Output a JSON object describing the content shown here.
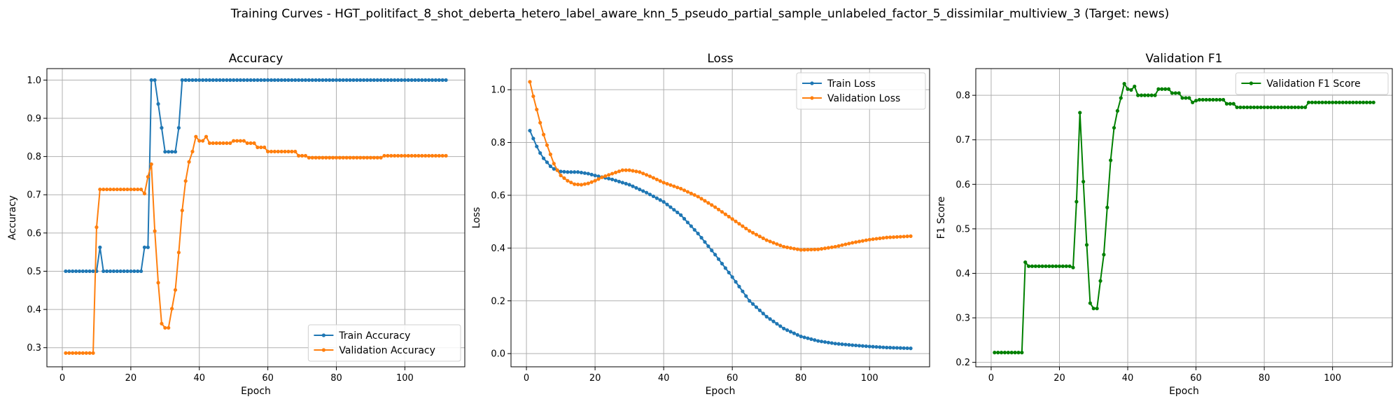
{
  "figure": {
    "suptitle": "Training Curves - HGT_politifact_8_shot_deberta_hetero_label_aware_knn_5_pseudo_partial_sample_unlabeled_factor_5_dissimilar_multiview_3 (Target: news)"
  },
  "chart_data": [
    {
      "type": "line",
      "title": "Accuracy",
      "xlabel": "Epoch",
      "ylabel": "Accuracy",
      "xlim": [
        -4.5,
        117.5
      ],
      "ylim": [
        0.25,
        1.03
      ],
      "xticks": [
        0,
        20,
        40,
        60,
        80,
        100
      ],
      "yticks": [
        0.3,
        0.4,
        0.5,
        0.6,
        0.7,
        0.8,
        0.9,
        1.0
      ],
      "grid": true,
      "legend_position": "lower right",
      "x": {
        "start": 1,
        "end": 112
      },
      "series": [
        {
          "name": "Train Accuracy",
          "color": "#1f77b4",
          "keypoints": [
            [
              1,
              0.5
            ],
            [
              10,
              0.5
            ],
            [
              11,
              0.5625
            ],
            [
              12,
              0.5
            ],
            [
              23,
              0.5
            ],
            [
              24,
              0.5625
            ],
            [
              25,
              0.5625
            ],
            [
              26,
              1.0
            ],
            [
              27,
              1.0
            ],
            [
              28,
              0.9375
            ],
            [
              29,
              0.875
            ],
            [
              30,
              0.8125
            ],
            [
              33,
              0.8125
            ],
            [
              34,
              0.875
            ],
            [
              35,
              1.0
            ],
            [
              112,
              1.0
            ]
          ]
        },
        {
          "name": "Validation Accuracy",
          "color": "#ff7f0e",
          "keypoints": [
            [
              1,
              0.286
            ],
            [
              9,
              0.286
            ],
            [
              10,
              0.615
            ],
            [
              11,
              0.714
            ],
            [
              23,
              0.714
            ],
            [
              24,
              0.703
            ],
            [
              25,
              0.747
            ],
            [
              26,
              0.78
            ],
            [
              27,
              0.605
            ],
            [
              28,
              0.47
            ],
            [
              29,
              0.363
            ],
            [
              30,
              0.352
            ],
            [
              31,
              0.352
            ],
            [
              32,
              0.402
            ],
            [
              33,
              0.451
            ],
            [
              34,
              0.549
            ],
            [
              35,
              0.659
            ],
            [
              36,
              0.736
            ],
            [
              37,
              0.786
            ],
            [
              38,
              0.813
            ],
            [
              39,
              0.852
            ],
            [
              40,
              0.841
            ],
            [
              41,
              0.841
            ],
            [
              42,
              0.852
            ],
            [
              43,
              0.835
            ],
            [
              49,
              0.835
            ],
            [
              50,
              0.841
            ],
            [
              53,
              0.841
            ],
            [
              54,
              0.835
            ],
            [
              56,
              0.835
            ],
            [
              57,
              0.824
            ],
            [
              59,
              0.824
            ],
            [
              60,
              0.813
            ],
            [
              68,
              0.813
            ],
            [
              69,
              0.802
            ],
            [
              71,
              0.802
            ],
            [
              72,
              0.797
            ],
            [
              93,
              0.797
            ],
            [
              94,
              0.802
            ],
            [
              112,
              0.802
            ]
          ]
        }
      ]
    },
    {
      "type": "line",
      "title": "Loss",
      "xlabel": "Epoch",
      "ylabel": "Loss",
      "xlim": [
        -4.5,
        117.5
      ],
      "ylim": [
        -0.05,
        1.08
      ],
      "xticks": [
        0,
        20,
        40,
        60,
        80,
        100
      ],
      "yticks": [
        0.0,
        0.2,
        0.4,
        0.6,
        0.8,
        1.0
      ],
      "grid": true,
      "legend_position": "upper right",
      "x": {
        "start": 1,
        "end": 112
      },
      "series": [
        {
          "name": "Train Loss",
          "color": "#1f77b4",
          "keypoints": [
            [
              1,
              0.845
            ],
            [
              2,
              0.815
            ],
            [
              3,
              0.785
            ],
            [
              4,
              0.76
            ],
            [
              5,
              0.74
            ],
            [
              6,
              0.725
            ],
            [
              7,
              0.71
            ],
            [
              8,
              0.7
            ],
            [
              9,
              0.695
            ],
            [
              10,
              0.69
            ],
            [
              12,
              0.688
            ],
            [
              15,
              0.688
            ],
            [
              18,
              0.682
            ],
            [
              20,
              0.675
            ],
            [
              25,
              0.66
            ],
            [
              30,
              0.64
            ],
            [
              35,
              0.61
            ],
            [
              40,
              0.575
            ],
            [
              45,
              0.525
            ],
            [
              50,
              0.455
            ],
            [
              55,
              0.375
            ],
            [
              60,
              0.29
            ],
            [
              65,
              0.2
            ],
            [
              70,
              0.14
            ],
            [
              75,
              0.095
            ],
            [
              80,
              0.065
            ],
            [
              85,
              0.048
            ],
            [
              90,
              0.038
            ],
            [
              95,
              0.032
            ],
            [
              100,
              0.027
            ],
            [
              105,
              0.023
            ],
            [
              112,
              0.02
            ]
          ]
        },
        {
          "name": "Validation Loss",
          "color": "#ff7f0e",
          "keypoints": [
            [
              1,
              1.03
            ],
            [
              2,
              0.975
            ],
            [
              3,
              0.925
            ],
            [
              4,
              0.875
            ],
            [
              5,
              0.83
            ],
            [
              6,
              0.79
            ],
            [
              7,
              0.755
            ],
            [
              8,
              0.72
            ],
            [
              9,
              0.695
            ],
            [
              10,
              0.675
            ],
            [
              12,
              0.655
            ],
            [
              14,
              0.642
            ],
            [
              16,
              0.64
            ],
            [
              18,
              0.645
            ],
            [
              20,
              0.655
            ],
            [
              22,
              0.668
            ],
            [
              25,
              0.682
            ],
            [
              28,
              0.695
            ],
            [
              30,
              0.695
            ],
            [
              33,
              0.688
            ],
            [
              36,
              0.672
            ],
            [
              40,
              0.648
            ],
            [
              45,
              0.625
            ],
            [
              50,
              0.595
            ],
            [
              55,
              0.555
            ],
            [
              60,
              0.51
            ],
            [
              65,
              0.465
            ],
            [
              70,
              0.43
            ],
            [
              75,
              0.405
            ],
            [
              80,
              0.393
            ],
            [
              85,
              0.395
            ],
            [
              90,
              0.405
            ],
            [
              95,
              0.42
            ],
            [
              100,
              0.432
            ],
            [
              105,
              0.44
            ],
            [
              112,
              0.445
            ]
          ]
        }
      ]
    },
    {
      "type": "line",
      "title": "Validation F1",
      "xlabel": "Epoch",
      "ylabel": "F1 Score",
      "xlim": [
        -4.5,
        117.5
      ],
      "ylim": [
        0.19,
        0.86
      ],
      "xticks": [
        0,
        20,
        40,
        60,
        80,
        100
      ],
      "yticks": [
        0.2,
        0.3,
        0.4,
        0.5,
        0.6,
        0.7,
        0.8
      ],
      "grid": true,
      "legend_position": "upper right",
      "x": {
        "start": 1,
        "end": 112
      },
      "series": [
        {
          "name": "Validation F1 Score",
          "color": "#008000",
          "keypoints": [
            [
              1,
              0.222
            ],
            [
              9,
              0.222
            ],
            [
              10,
              0.425
            ],
            [
              11,
              0.416
            ],
            [
              23,
              0.416
            ],
            [
              24,
              0.413
            ],
            [
              25,
              0.561
            ],
            [
              26,
              0.761
            ],
            [
              27,
              0.606
            ],
            [
              28,
              0.464
            ],
            [
              29,
              0.333
            ],
            [
              30,
              0.321
            ],
            [
              31,
              0.321
            ],
            [
              32,
              0.383
            ],
            [
              33,
              0.442
            ],
            [
              34,
              0.548
            ],
            [
              35,
              0.654
            ],
            [
              36,
              0.727
            ],
            [
              37,
              0.765
            ],
            [
              38,
              0.794
            ],
            [
              39,
              0.826
            ],
            [
              40,
              0.814
            ],
            [
              41,
              0.812
            ],
            [
              42,
              0.82
            ],
            [
              43,
              0.8
            ],
            [
              48,
              0.8
            ],
            [
              49,
              0.814
            ],
            [
              52,
              0.814
            ],
            [
              53,
              0.805
            ],
            [
              55,
              0.805
            ],
            [
              56,
              0.794
            ],
            [
              58,
              0.794
            ],
            [
              59,
              0.784
            ],
            [
              60,
              0.788
            ],
            [
              61,
              0.79
            ],
            [
              68,
              0.79
            ],
            [
              69,
              0.781
            ],
            [
              71,
              0.781
            ],
            [
              72,
              0.773
            ],
            [
              92,
              0.773
            ],
            [
              93,
              0.784
            ],
            [
              112,
              0.784
            ]
          ]
        }
      ]
    }
  ]
}
